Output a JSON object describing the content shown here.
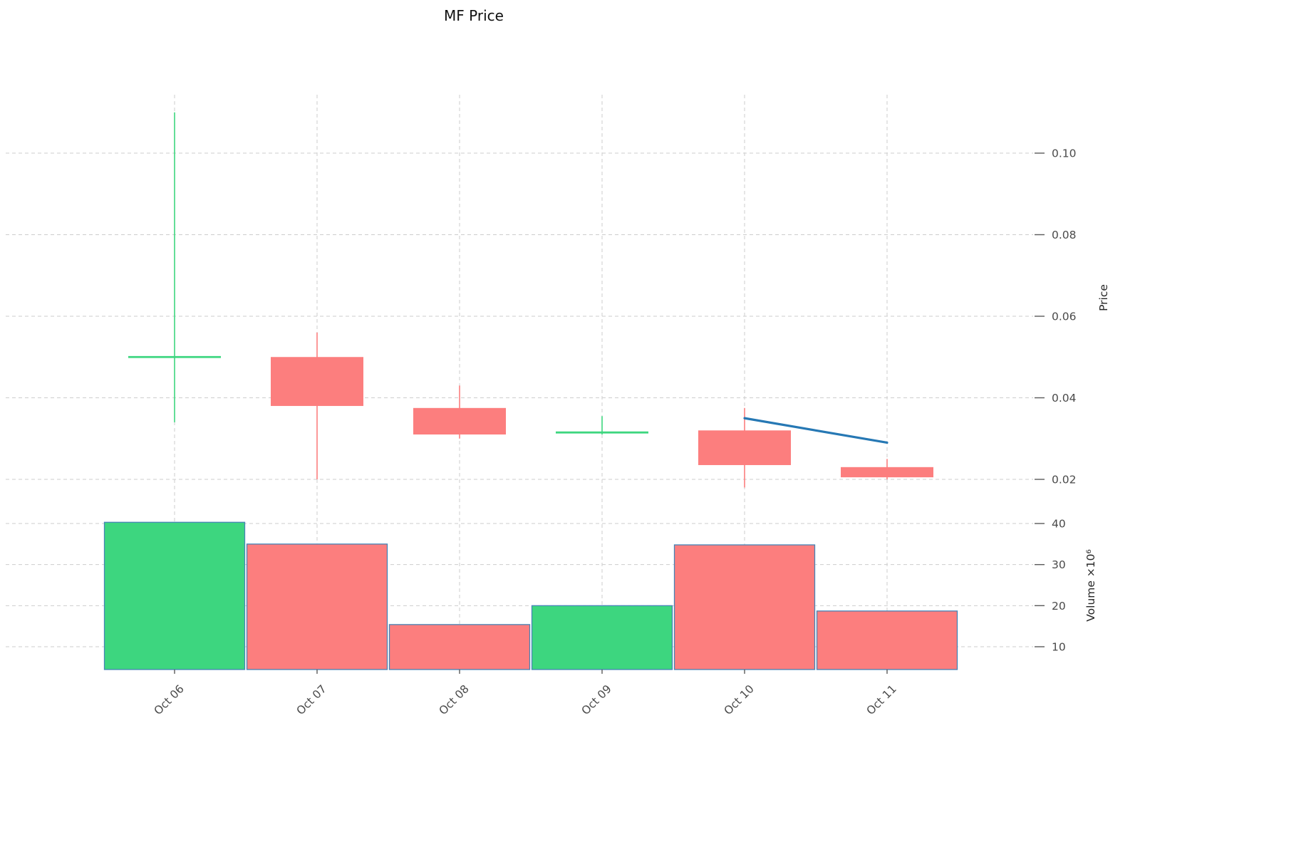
{
  "title": "MF Price",
  "axes": {
    "price_label": "Price",
    "volume_label": "Volume ×10⁶",
    "price_ticks": [
      "0.10",
      "0.08",
      "0.06",
      "0.04",
      "0.02"
    ],
    "volume_ticks": [
      "40",
      "30",
      "20",
      "10"
    ]
  },
  "chart_data": {
    "type": "candlestick",
    "title": "MF Price",
    "categories": [
      "Oct 06",
      "Oct 07",
      "Oct 08",
      "Oct 09",
      "Oct 10",
      "Oct 11"
    ],
    "series": [
      {
        "name": "OHLC Price",
        "candles": [
          {
            "date": "Oct 06",
            "open": 0.05,
            "high": 0.11,
            "low": 0.034,
            "close": 0.05,
            "direction": "up"
          },
          {
            "date": "Oct 07",
            "open": 0.05,
            "high": 0.056,
            "low": 0.02,
            "close": 0.038,
            "direction": "down"
          },
          {
            "date": "Oct 08",
            "open": 0.0375,
            "high": 0.043,
            "low": 0.03,
            "close": 0.031,
            "direction": "down"
          },
          {
            "date": "Oct 09",
            "open": 0.0315,
            "high": 0.0355,
            "low": 0.031,
            "close": 0.0315,
            "direction": "up"
          },
          {
            "date": "Oct 10",
            "open": 0.032,
            "high": 0.0375,
            "low": 0.018,
            "close": 0.0235,
            "direction": "down"
          },
          {
            "date": "Oct 11",
            "open": 0.023,
            "high": 0.025,
            "low": 0.02,
            "close": 0.0205,
            "direction": "down"
          }
        ]
      },
      {
        "name": "Volume (x10^6)",
        "values": [
          40.3,
          35.0,
          15.4,
          20.0,
          34.8,
          18.7
        ]
      }
    ],
    "trendline": {
      "points": [
        {
          "x": "Oct 10",
          "y": 0.035
        },
        {
          "x": "Oct 11",
          "y": 0.029
        }
      ]
    },
    "price_ylim": [
      0.013,
      0.118
    ],
    "volume_ylim": [
      4.5,
      45
    ],
    "grid": "dashed",
    "legend": "none",
    "colors": {
      "up": "#3dd67f",
      "down": "#fc7e7e",
      "volume_edge": "#4584b6",
      "trend": "#2678b4",
      "grid": "#cdcdcd",
      "tick_text": "#4a4a4a"
    }
  }
}
